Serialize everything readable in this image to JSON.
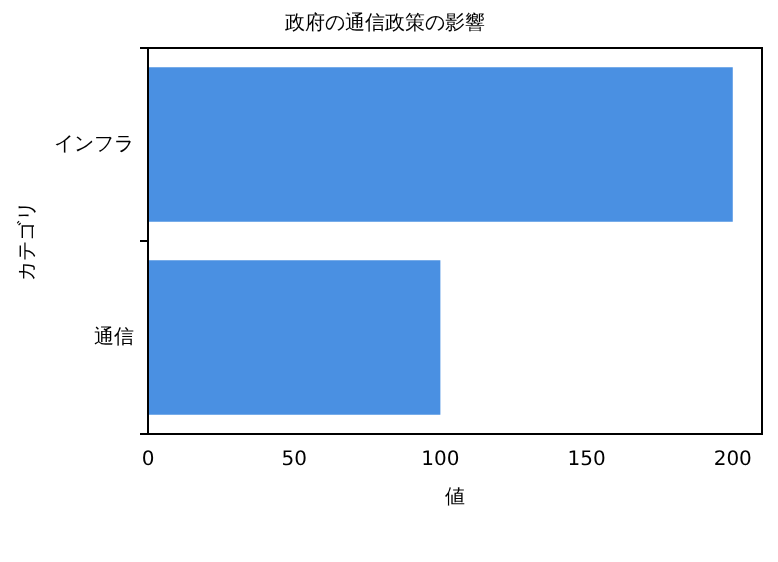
{
  "chart_data": {
    "type": "bar",
    "orientation": "horizontal",
    "title": "政府の通信政策の影響",
    "xlabel": "値",
    "ylabel": "カテゴリ",
    "categories": [
      "インフラ",
      "通信"
    ],
    "values": [
      200,
      100
    ],
    "color": "#4a90e2",
    "xlim": [
      0,
      210
    ],
    "xticks": [
      0,
      50,
      100,
      150,
      200
    ],
    "grid": false,
    "legend": false
  }
}
